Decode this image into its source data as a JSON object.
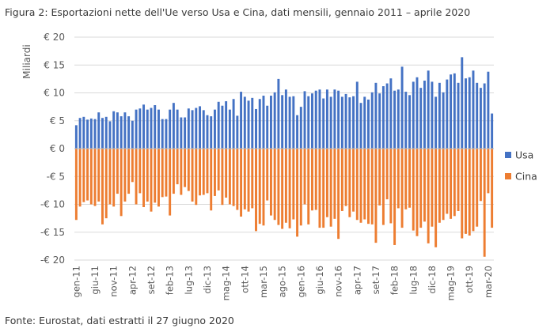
{
  "figure": {
    "title": "Figura 2: Esportazioni nette dell'Ue verso Usa e Cina, dati mensili, gennaio 2011 – aprile 2020",
    "source": "Fonte: Eurostat, dati estratti il 27 giugno 2020"
  },
  "colors": {
    "usa": "#4472C4",
    "cina": "#ED7D31",
    "grid": "#D9D9D9",
    "zero": "#BFBFBF"
  },
  "chart_data": {
    "type": "bar",
    "title": "Figura 2: Esportazioni nette dell'Ue verso Usa e Cina, dati mensili, gennaio 2011 – aprile 2020",
    "ylabel": "Miliardi",
    "xlabel": "",
    "ylim": [
      -20,
      20
    ],
    "yticks": [
      20,
      15,
      10,
      5,
      0,
      -5,
      -10,
      -15,
      -20
    ],
    "ytick_labels": [
      "€ 20",
      "€ 15",
      "€ 10",
      "€ 5",
      "€ 0",
      "-€ 5",
      "-€ 10",
      "-€ 15",
      "-€ 20"
    ],
    "legend_position": "right",
    "x_labels": [
      {
        "index": 0,
        "label": "gen-11"
      },
      {
        "index": 5,
        "label": "giu-11"
      },
      {
        "index": 10,
        "label": "nov-11"
      },
      {
        "index": 15,
        "label": "apr-12"
      },
      {
        "index": 20,
        "label": "set-12"
      },
      {
        "index": 25,
        "label": "feb-13"
      },
      {
        "index": 30,
        "label": "lug-13"
      },
      {
        "index": 35,
        "label": "dic-13"
      },
      {
        "index": 40,
        "label": "mag-14"
      },
      {
        "index": 45,
        "label": "ott-14"
      },
      {
        "index": 50,
        "label": "mar-15"
      },
      {
        "index": 55,
        "label": "ago-15"
      },
      {
        "index": 60,
        "label": "gen-16"
      },
      {
        "index": 65,
        "label": "giu-16"
      },
      {
        "index": 70,
        "label": "nov-16"
      },
      {
        "index": 75,
        "label": "apr-17"
      },
      {
        "index": 80,
        "label": "set-17"
      },
      {
        "index": 85,
        "label": "feb-18"
      },
      {
        "index": 90,
        "label": "lug-18"
      },
      {
        "index": 95,
        "label": "dic-18"
      },
      {
        "index": 100,
        "label": "mag-19"
      },
      {
        "index": 105,
        "label": "ott-19"
      },
      {
        "index": 110,
        "label": "mar-20"
      }
    ],
    "series": [
      {
        "name": "Usa",
        "color": "#4472C4",
        "values": [
          4.2,
          5.5,
          5.7,
          5.2,
          5.4,
          5.3,
          6.5,
          5.5,
          5.7,
          4.9,
          6.7,
          6.5,
          5.8,
          6.5,
          5.8,
          5.0,
          7.0,
          7.2,
          7.9,
          7.0,
          7.3,
          7.8,
          7.0,
          5.3,
          5.3,
          7.0,
          8.2,
          7.0,
          5.6,
          5.6,
          7.2,
          6.9,
          7.3,
          7.6,
          6.9,
          6.0,
          5.8,
          7.0,
          8.4,
          7.7,
          8.5,
          7.0,
          8.9,
          5.9,
          10.2,
          9.3,
          8.6,
          9.1,
          7.1,
          8.9,
          9.5,
          7.7,
          9.5,
          10.1,
          12.5,
          9.6,
          10.6,
          9.3,
          9.4,
          6.0,
          7.5,
          10.3,
          9.4,
          9.9,
          10.4,
          10.6,
          9.0,
          10.6,
          9.3,
          10.6,
          10.4,
          9.3,
          9.8,
          9.2,
          9.4,
          12.0,
          8.2,
          9.3,
          8.8,
          10.1,
          11.8,
          9.9,
          11.2,
          11.7,
          12.6,
          10.4,
          10.6,
          14.7,
          10.2,
          9.6,
          12.0,
          12.8,
          10.9,
          12.2,
          14.0,
          12.0,
          9.3,
          11.8,
          10.1,
          12.4,
          13.3,
          13.5,
          11.8,
          16.4,
          12.6,
          12.8,
          14.0,
          11.8,
          10.9,
          11.7,
          13.8,
          6.3
        ]
      },
      {
        "name": "Cina",
        "color": "#ED7D31",
        "values": [
          -12.8,
          -10.4,
          -9.6,
          -9.3,
          -10.0,
          -10.3,
          -9.5,
          -13.6,
          -12.5,
          -10.0,
          -10.4,
          -8.1,
          -12.1,
          -9.5,
          -8.1,
          -6.0,
          -10.0,
          -8.0,
          -10.5,
          -9.5,
          -11.3,
          -9.7,
          -10.4,
          -8.7,
          -8.6,
          -12.0,
          -8.1,
          -6.4,
          -8.3,
          -6.9,
          -7.6,
          -9.5,
          -10.1,
          -8.4,
          -8.3,
          -8.0,
          -11.1,
          -8.5,
          -7.5,
          -10.1,
          -8.8,
          -10.0,
          -10.3,
          -11.0,
          -12.2,
          -10.9,
          -11.3,
          -10.7,
          -14.8,
          -13.5,
          -13.8,
          -9.3,
          -12.0,
          -12.8,
          -13.7,
          -14.4,
          -13.3,
          -14.3,
          -12.7,
          -15.8,
          -13.8,
          -10.0,
          -13.6,
          -11.1,
          -11.0,
          -14.2,
          -14.2,
          -12.3,
          -14.0,
          -12.6,
          -16.2,
          -11.2,
          -10.3,
          -12.3,
          -11.3,
          -12.8,
          -13.3,
          -12.7,
          -13.5,
          -13.6,
          -16.9,
          -10.2,
          -13.7,
          -9.1,
          -13.4,
          -17.3,
          -10.7,
          -14.2,
          -10.9,
          -10.6,
          -14.7,
          -15.7,
          -14.2,
          -13.1,
          -17.0,
          -14.0,
          -17.7,
          -13.3,
          -12.8,
          -11.7,
          -12.6,
          -12.1,
          -11.2,
          -16.1,
          -15.3,
          -15.6,
          -14.8,
          -14.0,
          -9.4,
          -19.4,
          -8.0,
          -14.2
        ]
      }
    ]
  }
}
